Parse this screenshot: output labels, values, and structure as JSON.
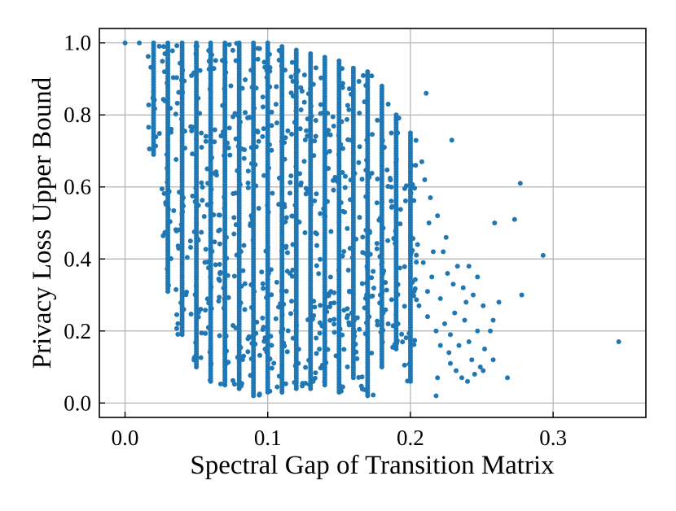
{
  "chart_data": {
    "type": "scatter",
    "xlabel": "Spectral Gap of Transition Matrix",
    "ylabel": "Privacy Loss Upper Bound",
    "xlim": [
      -0.018,
      0.365
    ],
    "ylim": [
      -0.04,
      1.04
    ],
    "x_ticks": [
      "0.0",
      "0.1",
      "0.2",
      "0.3"
    ],
    "y_ticks": [
      "0.0",
      "0.2",
      "0.4",
      "0.6",
      "0.8",
      "1.0"
    ],
    "grid": true,
    "marker_color": "#1f77b4",
    "column_spacing": 0.01,
    "columns": [
      {
        "x": 0.0,
        "ymin": 1.0,
        "ymax": 1.0
      },
      {
        "x": 0.01,
        "ymin": 1.0,
        "ymax": 1.0
      },
      {
        "x": 0.02,
        "ymin": 0.69,
        "ymax": 1.0
      },
      {
        "x": 0.03,
        "ymin": 0.31,
        "ymax": 1.0
      },
      {
        "x": 0.04,
        "ymin": 0.19,
        "ymax": 1.0
      },
      {
        "x": 0.05,
        "ymin": 0.1,
        "ymax": 1.0
      },
      {
        "x": 0.06,
        "ymin": 0.06,
        "ymax": 1.0
      },
      {
        "x": 0.07,
        "ymin": 0.05,
        "ymax": 1.0
      },
      {
        "x": 0.08,
        "ymin": 0.04,
        "ymax": 1.0
      },
      {
        "x": 0.09,
        "ymin": 0.02,
        "ymax": 1.0
      },
      {
        "x": 0.1,
        "ymin": 0.03,
        "ymax": 1.0
      },
      {
        "x": 0.11,
        "ymin": 0.03,
        "ymax": 0.99
      },
      {
        "x": 0.12,
        "ymin": 0.04,
        "ymax": 0.98
      },
      {
        "x": 0.13,
        "ymin": 0.04,
        "ymax": 0.97
      },
      {
        "x": 0.14,
        "ymin": 0.05,
        "ymax": 0.96
      },
      {
        "x": 0.15,
        "ymin": 0.03,
        "ymax": 0.95
      },
      {
        "x": 0.16,
        "ymin": 0.07,
        "ymax": 0.93
      },
      {
        "x": 0.17,
        "ymin": 0.02,
        "ymax": 0.92
      },
      {
        "x": 0.18,
        "ymin": 0.1,
        "ymax": 0.88
      },
      {
        "x": 0.19,
        "ymin": 0.15,
        "ymax": 0.8
      },
      {
        "x": 0.2,
        "ymin": 0.06,
        "ymax": 0.75
      }
    ],
    "points": [
      [
        0.211,
        0.86
      ],
      [
        0.229,
        0.73
      ],
      [
        0.208,
        0.67
      ],
      [
        0.21,
        0.62
      ],
      [
        0.214,
        0.57
      ],
      [
        0.219,
        0.52
      ],
      [
        0.223,
        0.42
      ],
      [
        0.226,
        0.36
      ],
      [
        0.233,
        0.38
      ],
      [
        0.237,
        0.32
      ],
      [
        0.241,
        0.38
      ],
      [
        0.244,
        0.3
      ],
      [
        0.247,
        0.35
      ],
      [
        0.251,
        0.27
      ],
      [
        0.259,
        0.5
      ],
      [
        0.262,
        0.28
      ],
      [
        0.273,
        0.51
      ],
      [
        0.277,
        0.61
      ],
      [
        0.278,
        0.3
      ],
      [
        0.293,
        0.41
      ],
      [
        0.346,
        0.17
      ],
      [
        0.218,
        0.02
      ],
      [
        0.219,
        0.07
      ],
      [
        0.228,
        0.11
      ],
      [
        0.236,
        0.07
      ],
      [
        0.245,
        0.08
      ],
      [
        0.251,
        0.09
      ],
      [
        0.258,
        0.12
      ],
      [
        0.268,
        0.07
      ],
      [
        0.228,
        0.19
      ],
      [
        0.238,
        0.23
      ],
      [
        0.258,
        0.23
      ],
      [
        0.231,
        0.25
      ],
      [
        0.221,
        0.29
      ],
      [
        0.212,
        0.31
      ],
      [
        0.227,
        0.14
      ],
      [
        0.243,
        0.12
      ],
      [
        0.252,
        0.15
      ],
      [
        0.215,
        0.35
      ],
      [
        0.225,
        0.46
      ],
      [
        0.218,
        0.2
      ],
      [
        0.232,
        0.09
      ],
      [
        0.241,
        0.17
      ],
      [
        0.205,
        0.44
      ],
      [
        0.209,
        0.39
      ],
      [
        0.224,
        0.22
      ],
      [
        0.239,
        0.28
      ],
      [
        0.216,
        0.42
      ],
      [
        0.234,
        0.16
      ],
      [
        0.249,
        0.1
      ],
      [
        0.213,
        0.5
      ],
      [
        0.221,
        0.16
      ],
      [
        0.247,
        0.2
      ],
      [
        0.206,
        0.27
      ],
      [
        0.23,
        0.33
      ],
      [
        0.24,
        0.06
      ],
      [
        0.256,
        0.2
      ],
      [
        0.212,
        0.24
      ]
    ]
  }
}
